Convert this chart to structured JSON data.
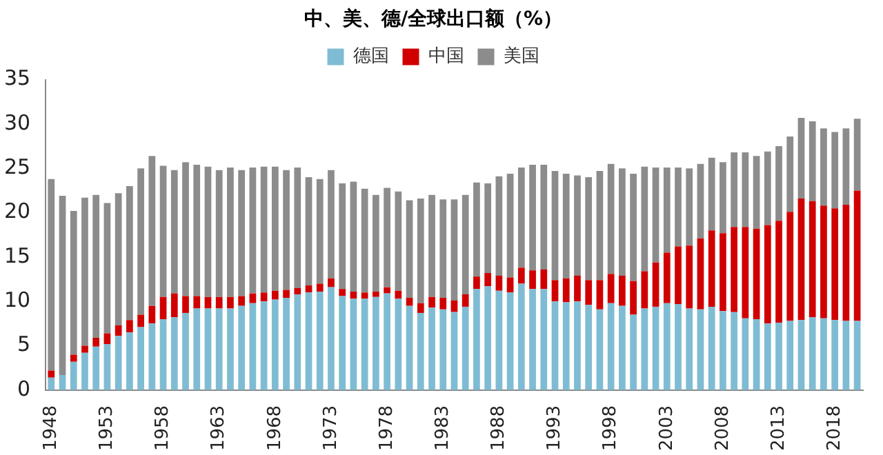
{
  "chart_data": {
    "type": "bar",
    "title": "中、美、德/全球出口额（%）",
    "stacked": true,
    "legend": "top",
    "grid": false,
    "categories": [
      "1948",
      null,
      null,
      null,
      null,
      "1953",
      null,
      null,
      null,
      null,
      "1958",
      null,
      null,
      null,
      null,
      "1963",
      null,
      null,
      null,
      null,
      "1968",
      null,
      null,
      null,
      null,
      "1973",
      null,
      null,
      null,
      null,
      "1978",
      null,
      null,
      null,
      null,
      "1983",
      null,
      null,
      null,
      null,
      "1988",
      null,
      null,
      null,
      null,
      "1993",
      null,
      null,
      null,
      null,
      "1998",
      null,
      null,
      null,
      null,
      "2003",
      null,
      null,
      null,
      null,
      "2008",
      null,
      null,
      null,
      null,
      "2013",
      null,
      null,
      null,
      null,
      "2018",
      null,
      null
    ],
    "ylim": [
      0,
      35
    ],
    "yticks": [
      0,
      5,
      10,
      15,
      20,
      25,
      30,
      35
    ],
    "series": [
      {
        "name": "德国",
        "color": "#7fbcd4",
        "values": [
          1.4,
          1.7,
          3.2,
          4.2,
          4.9,
          5.2,
          6.1,
          6.5,
          7.1,
          7.5,
          8.0,
          8.2,
          8.7,
          9.2,
          9.2,
          9.2,
          9.2,
          9.5,
          9.8,
          10.0,
          10.2,
          10.4,
          10.8,
          11.0,
          11.1,
          11.6,
          10.6,
          10.3,
          10.3,
          10.5,
          10.9,
          10.3,
          9.5,
          8.7,
          9.3,
          9.1,
          8.8,
          9.4,
          11.4,
          11.7,
          11.2,
          11.0,
          12.0,
          11.4,
          11.4,
          10.0,
          9.9,
          10.0,
          9.6,
          9.1,
          9.8,
          9.5,
          8.5,
          9.2,
          9.4,
          9.8,
          9.7,
          9.2,
          9.1,
          9.4,
          8.9,
          8.8,
          8.1,
          8.0,
          7.5,
          7.6,
          7.8,
          7.9,
          8.2,
          8.1,
          7.9,
          7.8,
          7.8
        ]
      },
      {
        "name": "中国",
        "color": "#d00000",
        "values": [
          0.8,
          0,
          0.8,
          0.8,
          1.0,
          1.2,
          1.2,
          1.4,
          1.4,
          2.0,
          2.5,
          2.7,
          1.9,
          1.4,
          1.3,
          1.3,
          1.3,
          1.1,
          1.1,
          1.0,
          1.0,
          0.9,
          0.7,
          0.8,
          0.9,
          1.0,
          0.8,
          0.8,
          0.7,
          0.6,
          0.7,
          0.9,
          0.9,
          1.1,
          1.2,
          1.3,
          1.3,
          1.4,
          1.4,
          1.5,
          1.7,
          1.7,
          1.8,
          2.1,
          2.2,
          2.4,
          2.7,
          2.9,
          2.8,
          3.3,
          3.3,
          3.4,
          3.8,
          4.2,
          5.0,
          5.7,
          6.5,
          7.1,
          8.0,
          8.6,
          8.8,
          9.6,
          10.3,
          10.2,
          11.1,
          11.5,
          12.3,
          13.7,
          13.1,
          12.7,
          12.6,
          13.1,
          14.7
        ]
      },
      {
        "name": "美国",
        "color": "#8c8c8c",
        "values": [
          21.6,
          20.2,
          16.2,
          16.7,
          16.1,
          14.7,
          14.9,
          15.1,
          16.5,
          16.9,
          14.8,
          13.9,
          15.1,
          14.8,
          14.7,
          14.3,
          14.6,
          14.2,
          14.2,
          14.2,
          14.0,
          13.5,
          13.6,
          12.2,
          11.8,
          12.2,
          11.9,
          12.4,
          11.7,
          10.9,
          11.2,
          11.2,
          11.0,
          11.8,
          11.5,
          11.1,
          11.4,
          11.2,
          10.6,
          10.1,
          11.2,
          11.7,
          11.3,
          11.9,
          11.8,
          12.3,
          11.8,
          11.3,
          11.6,
          12.3,
          12.4,
          12.1,
          12.1,
          11.8,
          10.7,
          9.6,
          8.9,
          8.7,
          8.4,
          8.2,
          8.0,
          8.4,
          8.4,
          8.2,
          8.3,
          8.4,
          8.5,
          9.1,
          9.0,
          8.7,
          8.6,
          8.6,
          8.1
        ]
      }
    ]
  }
}
